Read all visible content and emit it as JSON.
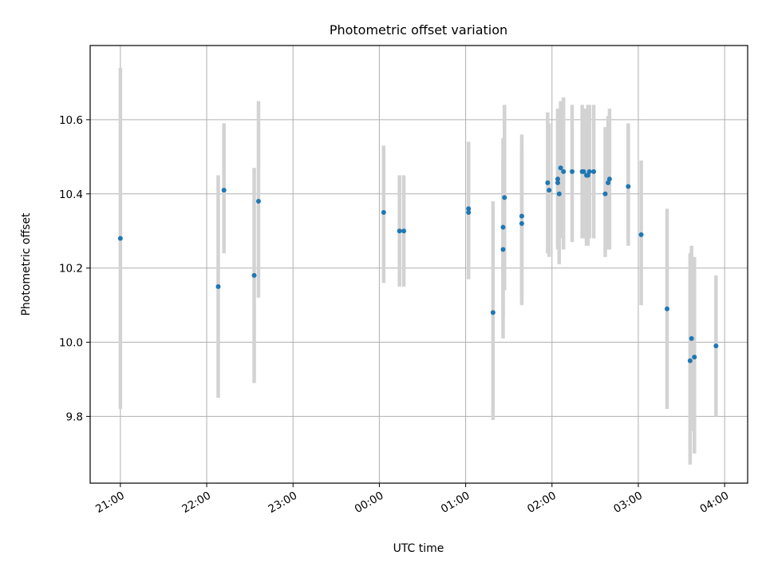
{
  "chart_data": {
    "type": "scatter",
    "title": "Photometric offset variation",
    "xlabel": "UTC time",
    "ylabel": "Photometric offset",
    "grid": true,
    "x_unit": "UTC clock time; values after midnight fall on the following day",
    "xlim": [
      "20:39",
      "04:16"
    ],
    "ylim": [
      9.62,
      10.8
    ],
    "x_ticks": [
      "21:00",
      "22:00",
      "23:00",
      "00:00",
      "01:00",
      "02:00",
      "03:00",
      "04:00"
    ],
    "y_ticks": [
      9.8,
      10.0,
      10.2,
      10.4,
      10.6
    ],
    "y_tick_labels": [
      "9.8",
      "10.0",
      "10.2",
      "10.4",
      "10.6"
    ],
    "series": [
      {
        "color": "#1f77b4",
        "errorbar_color": "#d3d3d3",
        "points": [
          {
            "t": "21:00",
            "y": 10.28,
            "lo": 9.82,
            "hi": 10.74
          },
          {
            "t": "22:08",
            "y": 10.15,
            "lo": 9.85,
            "hi": 10.45
          },
          {
            "t": "22:12",
            "y": 10.41,
            "lo": 10.24,
            "hi": 10.59
          },
          {
            "t": "22:33",
            "y": 10.18,
            "lo": 9.89,
            "hi": 10.47
          },
          {
            "t": "22:36",
            "y": 10.38,
            "lo": 10.12,
            "hi": 10.65
          },
          {
            "t": "00:03",
            "y": 10.35,
            "lo": 10.16,
            "hi": 10.53
          },
          {
            "t": "00:14",
            "y": 10.3,
            "lo": 10.15,
            "hi": 10.45
          },
          {
            "t": "00:17",
            "y": 10.3,
            "lo": 10.15,
            "hi": 10.45
          },
          {
            "t": "01:02",
            "y": 10.36,
            "lo": 10.17,
            "hi": 10.54
          },
          {
            "t": "01:02",
            "y": 10.35,
            "lo": 10.17,
            "hi": 10.54
          },
          {
            "t": "01:19",
            "y": 10.08,
            "lo": 9.79,
            "hi": 10.38
          },
          {
            "t": "01:26",
            "y": 10.25,
            "lo": 10.01,
            "hi": 10.48
          },
          {
            "t": "01:26",
            "y": 10.31,
            "lo": 10.07,
            "hi": 10.55
          },
          {
            "t": "01:27",
            "y": 10.39,
            "lo": 10.14,
            "hi": 10.64
          },
          {
            "t": "01:39",
            "y": 10.34,
            "lo": 10.12,
            "hi": 10.56
          },
          {
            "t": "01:39",
            "y": 10.32,
            "lo": 10.1,
            "hi": 10.53
          },
          {
            "t": "01:57",
            "y": 10.43,
            "lo": 10.24,
            "hi": 10.62
          },
          {
            "t": "01:58",
            "y": 10.41,
            "lo": 10.23,
            "hi": 10.59
          },
          {
            "t": "02:04",
            "y": 10.43,
            "lo": 10.25,
            "hi": 10.62
          },
          {
            "t": "02:04",
            "y": 10.44,
            "lo": 10.26,
            "hi": 10.63
          },
          {
            "t": "02:05",
            "y": 10.4,
            "lo": 10.21,
            "hi": 10.59
          },
          {
            "t": "02:06",
            "y": 10.47,
            "lo": 10.28,
            "hi": 10.65
          },
          {
            "t": "02:08",
            "y": 10.46,
            "lo": 10.25,
            "hi": 10.66
          },
          {
            "t": "02:14",
            "y": 10.46,
            "lo": 10.27,
            "hi": 10.64
          },
          {
            "t": "02:21",
            "y": 10.46,
            "lo": 10.28,
            "hi": 10.64
          },
          {
            "t": "02:22",
            "y": 10.46,
            "lo": 10.28,
            "hi": 10.63
          },
          {
            "t": "02:24",
            "y": 10.45,
            "lo": 10.26,
            "hi": 10.63
          },
          {
            "t": "02:25",
            "y": 10.45,
            "lo": 10.26,
            "hi": 10.64
          },
          {
            "t": "02:26",
            "y": 10.46,
            "lo": 10.28,
            "hi": 10.64
          },
          {
            "t": "02:29",
            "y": 10.46,
            "lo": 10.28,
            "hi": 10.64
          },
          {
            "t": "02:37",
            "y": 10.4,
            "lo": 10.23,
            "hi": 10.58
          },
          {
            "t": "02:39",
            "y": 10.43,
            "lo": 10.25,
            "hi": 10.61
          },
          {
            "t": "02:40",
            "y": 10.44,
            "lo": 10.25,
            "hi": 10.63
          },
          {
            "t": "02:53",
            "y": 10.42,
            "lo": 10.26,
            "hi": 10.59
          },
          {
            "t": "03:02",
            "y": 10.29,
            "lo": 10.1,
            "hi": 10.49
          },
          {
            "t": "03:20",
            "y": 10.09,
            "lo": 9.82,
            "hi": 10.36
          },
          {
            "t": "03:36",
            "y": 9.95,
            "lo": 9.67,
            "hi": 10.24
          },
          {
            "t": "03:37",
            "y": 10.01,
            "lo": 9.76,
            "hi": 10.26
          },
          {
            "t": "03:39",
            "y": 9.96,
            "lo": 9.7,
            "hi": 10.23
          },
          {
            "t": "03:54",
            "y": 9.99,
            "lo": 9.8,
            "hi": 10.18
          }
        ]
      }
    ]
  }
}
